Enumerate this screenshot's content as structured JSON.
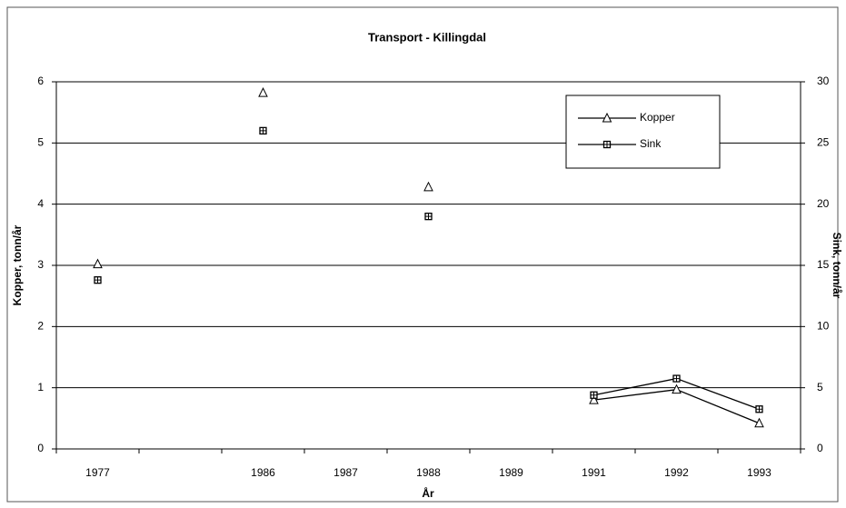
{
  "chart_data": {
    "type": "line",
    "title": "Transport - Killingdal",
    "x_label": "År",
    "y_label": "Kopper, tonn/år",
    "y2_label": "Sink, tonn/år",
    "categories": [
      "1977",
      null,
      "1986",
      "1987",
      "1988",
      "1989",
      "1991",
      "1992",
      "1993"
    ],
    "series": [
      {
        "name": "Kopper",
        "color": "#000000",
        "marker": "triangle",
        "axis": "y",
        "values": [
          3.02,
          null,
          5.82,
          null,
          4.28,
          null,
          0.8,
          0.97,
          0.42
        ]
      },
      {
        "name": "Sink",
        "color": "#000000",
        "marker": "square",
        "axis": "y2",
        "values": [
          13.8,
          null,
          26,
          null,
          19,
          null,
          4.4,
          5.75,
          3.25
        ]
      }
    ],
    "ylim": [
      0,
      6
    ],
    "yticks": [
      0,
      1,
      2,
      3,
      4,
      5,
      6
    ],
    "y2lim": [
      0,
      30
    ],
    "y2ticks": [
      0,
      5,
      10,
      15,
      20,
      25,
      30
    ],
    "grid": true,
    "legend": "upper right"
  }
}
